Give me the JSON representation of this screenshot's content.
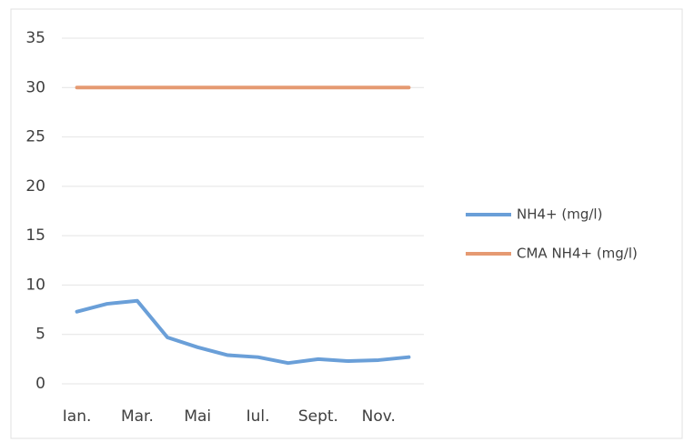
{
  "chart_data": {
    "type": "line",
    "categories": [
      "Ian.",
      null,
      "Mar.",
      null,
      "Mai",
      null,
      "Iul.",
      null,
      "Sept.",
      null,
      "Nov.",
      null
    ],
    "series": [
      {
        "name": "NH4+ (mg/l)",
        "color": "#6a9fd8",
        "values": [
          7.3,
          8.1,
          8.4,
          4.7,
          3.7,
          2.9,
          2.7,
          2.1,
          2.5,
          2.3,
          2.4,
          2.7
        ]
      },
      {
        "name": "CMA NH4+ (mg/l)",
        "color": "#e59a72",
        "values": [
          30,
          30,
          30,
          30,
          30,
          30,
          30,
          30,
          30,
          30,
          30,
          30
        ]
      }
    ],
    "ylim": [
      0,
      35
    ],
    "yticks": [
      0,
      5,
      10,
      15,
      20,
      25,
      30,
      35
    ],
    "grid": true,
    "legend": "right"
  }
}
